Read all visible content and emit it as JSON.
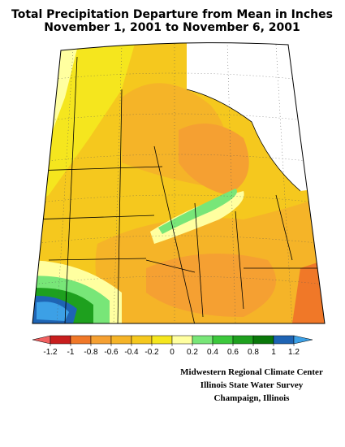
{
  "title": [
    "Total Precipitation Departure from Mean in Inches",
    "November 1, 2001 to November 6, 2001"
  ],
  "colorbar": {
    "ticks": [
      -1.2,
      -1,
      -0.8,
      -0.6,
      -0.4,
      -0.2,
      0,
      0.2,
      0.4,
      0.6,
      0.8,
      1,
      1.2
    ],
    "colors": [
      "#f06060",
      "#c81e1e",
      "#f07828",
      "#f5a032",
      "#f5b428",
      "#f5c81e",
      "#f5e61e",
      "#ffffa0",
      "#78e678",
      "#3cc83c",
      "#1ea01e",
      "#0a780a",
      "#1e64b4",
      "#3ca0e6"
    ]
  },
  "credits": [
    "Midwestern Regional Climate Center",
    "Illinois State Water Survey",
    "Champaign, Illinois"
  ]
}
